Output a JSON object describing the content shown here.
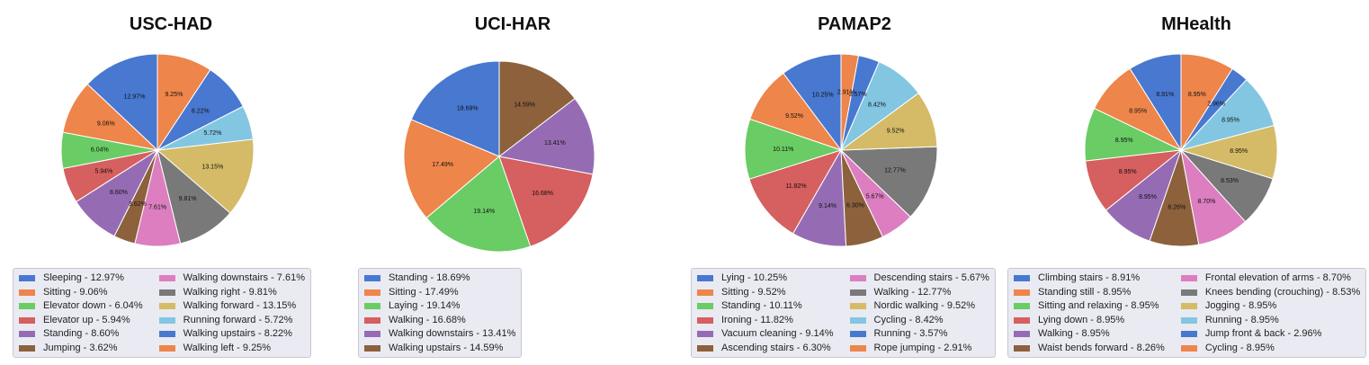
{
  "colors": {
    "palette": [
      "#4878d0",
      "#ee854a",
      "#6acc64",
      "#d65f5f",
      "#956cb4",
      "#8c613c",
      "#dc7ec0",
      "#797979",
      "#d5bb67",
      "#82c6e2"
    ],
    "slice_edge": "#ffffff",
    "legend_bg": "#eaeaf2"
  },
  "chart_data": [
    {
      "type": "pie",
      "title": "USC-HAD",
      "categories": [
        "Sleeping",
        "Sitting",
        "Elevator down",
        "Elevator up",
        "Standing",
        "Jumping",
        "Walking downstairs",
        "Walking right",
        "Walking forward",
        "Running forward",
        "Walking upstairs",
        "Walking left"
      ],
      "values": [
        12.97,
        9.06,
        6.04,
        5.94,
        8.6,
        3.62,
        7.61,
        9.81,
        13.15,
        5.72,
        8.22,
        9.25
      ],
      "slice_labels": [
        "12.97%",
        "9.06%",
        "6.04%",
        "5.94%",
        "8.60%",
        "3.62%",
        "7.61%",
        "9.81%",
        "13.15%",
        "5.72%",
        "8.22%",
        "9.25%"
      ],
      "legend_labels": [
        "Sleeping - 12.97%",
        "Sitting - 9.06%",
        "Elevator down - 6.04%",
        "Elevator up - 5.94%",
        "Standing - 8.60%",
        "Jumping - 3.62%",
        "Walking downstairs - 7.61%",
        "Walking right - 9.81%",
        "Walking forward - 13.15%",
        "Running forward - 5.72%",
        "Walking upstairs - 8.22%",
        "Walking left - 9.25%"
      ],
      "slice_colors": [
        "#4878d0",
        "#ee854a",
        "#6acc64",
        "#d65f5f",
        "#956cb4",
        "#8c613c",
        "#dc7ec0",
        "#797979",
        "#d5bb67",
        "#82c6e2",
        "#4878d0",
        "#ee854a"
      ],
      "start_angle_deg": 90,
      "direction": "counterclockwise",
      "legend_placement": "bottom"
    },
    {
      "type": "pie",
      "title": "UCI-HAR",
      "categories": [
        "Standing",
        "Sitting",
        "Laying",
        "Walking",
        "Walking downstairs",
        "Walking upstairs"
      ],
      "values": [
        18.69,
        17.49,
        19.14,
        16.68,
        13.41,
        14.59
      ],
      "slice_labels": [
        "18.69%",
        "17.49%",
        "19.14%",
        "16.68%",
        "13.41%",
        "14.59%"
      ],
      "legend_labels": [
        "Standing - 18.69%",
        "Sitting - 17.49%",
        "Laying - 19.14%",
        "Walking - 16.68%",
        "Walking downstairs - 13.41%",
        "Walking upstairs - 14.59%"
      ],
      "slice_colors": [
        "#4878d0",
        "#ee854a",
        "#6acc64",
        "#d65f5f",
        "#956cb4",
        "#8c613c"
      ],
      "start_angle_deg": 90,
      "direction": "counterclockwise",
      "legend_placement": "bottom"
    },
    {
      "type": "pie",
      "title": "PAMAP2",
      "categories": [
        "Lying",
        "Sitting",
        "Standing",
        "Ironing",
        "Vacuum cleaning",
        "Ascending stairs",
        "Descending stairs",
        "Walking",
        "Nordic walking",
        "Cycling",
        "Running",
        "Rope jumping"
      ],
      "values": [
        10.25,
        9.52,
        10.11,
        11.82,
        9.14,
        6.3,
        5.67,
        12.77,
        9.52,
        8.42,
        3.57,
        2.91
      ],
      "slice_labels": [
        "10.25%",
        "9.52%",
        "10.11%",
        "11.82%",
        "9.14%",
        "6.30%",
        "5.67%",
        "12.77%",
        "9.52%",
        "8.42%",
        "3.57%",
        "2.91%"
      ],
      "legend_labels": [
        "Lying - 10.25%",
        "Sitting - 9.52%",
        "Standing - 10.11%",
        "Ironing - 11.82%",
        "Vacuum cleaning - 9.14%",
        "Ascending stairs - 6.30%",
        "Descending stairs - 5.67%",
        "Walking - 12.77%",
        "Nordic walking - 9.52%",
        "Cycling - 8.42%",
        "Running - 3.57%",
        "Rope jumping - 2.91%"
      ],
      "slice_colors": [
        "#4878d0",
        "#ee854a",
        "#6acc64",
        "#d65f5f",
        "#956cb4",
        "#8c613c",
        "#dc7ec0",
        "#797979",
        "#d5bb67",
        "#82c6e2",
        "#4878d0",
        "#ee854a"
      ],
      "start_angle_deg": 90,
      "direction": "counterclockwise",
      "legend_placement": "bottom"
    },
    {
      "type": "pie",
      "title": "MHealth",
      "categories": [
        "Climbing stairs",
        "Standing still",
        "Sitting and relaxing",
        "Lying down",
        "Walking",
        "Waist bends forward",
        "Frontal elevation of arms",
        "Knees bending (crouching)",
        "Jogging",
        "Running",
        "Jump front & back",
        "Cycling"
      ],
      "values": [
        8.91,
        8.95,
        8.95,
        8.95,
        8.95,
        8.26,
        8.7,
        8.53,
        8.95,
        8.95,
        2.96,
        8.95
      ],
      "slice_labels": [
        "8.91%",
        "8.95%",
        "8.95%",
        "8.95%",
        "8.95%",
        "8.26%",
        "8.70%",
        "8.53%",
        "8.95%",
        "8.95%",
        "2.96%",
        "8.95%"
      ],
      "legend_labels": [
        "Climbing stairs - 8.91%",
        "Standing still - 8.95%",
        "Sitting and relaxing - 8.95%",
        "Lying down - 8.95%",
        "Walking - 8.95%",
        "Waist bends forward - 8.26%",
        "Frontal elevation of arms - 8.70%",
        "Knees bending (crouching) - 8.53%",
        "Jogging - 8.95%",
        "Running - 8.95%",
        "Jump front & back - 2.96%",
        "Cycling - 8.95%"
      ],
      "slice_colors": [
        "#4878d0",
        "#ee854a",
        "#6acc64",
        "#d65f5f",
        "#956cb4",
        "#8c613c",
        "#dc7ec0",
        "#797979",
        "#d5bb67",
        "#82c6e2",
        "#4878d0",
        "#ee854a"
      ],
      "start_angle_deg": 90,
      "direction": "counterclockwise",
      "legend_placement": "bottom"
    }
  ]
}
